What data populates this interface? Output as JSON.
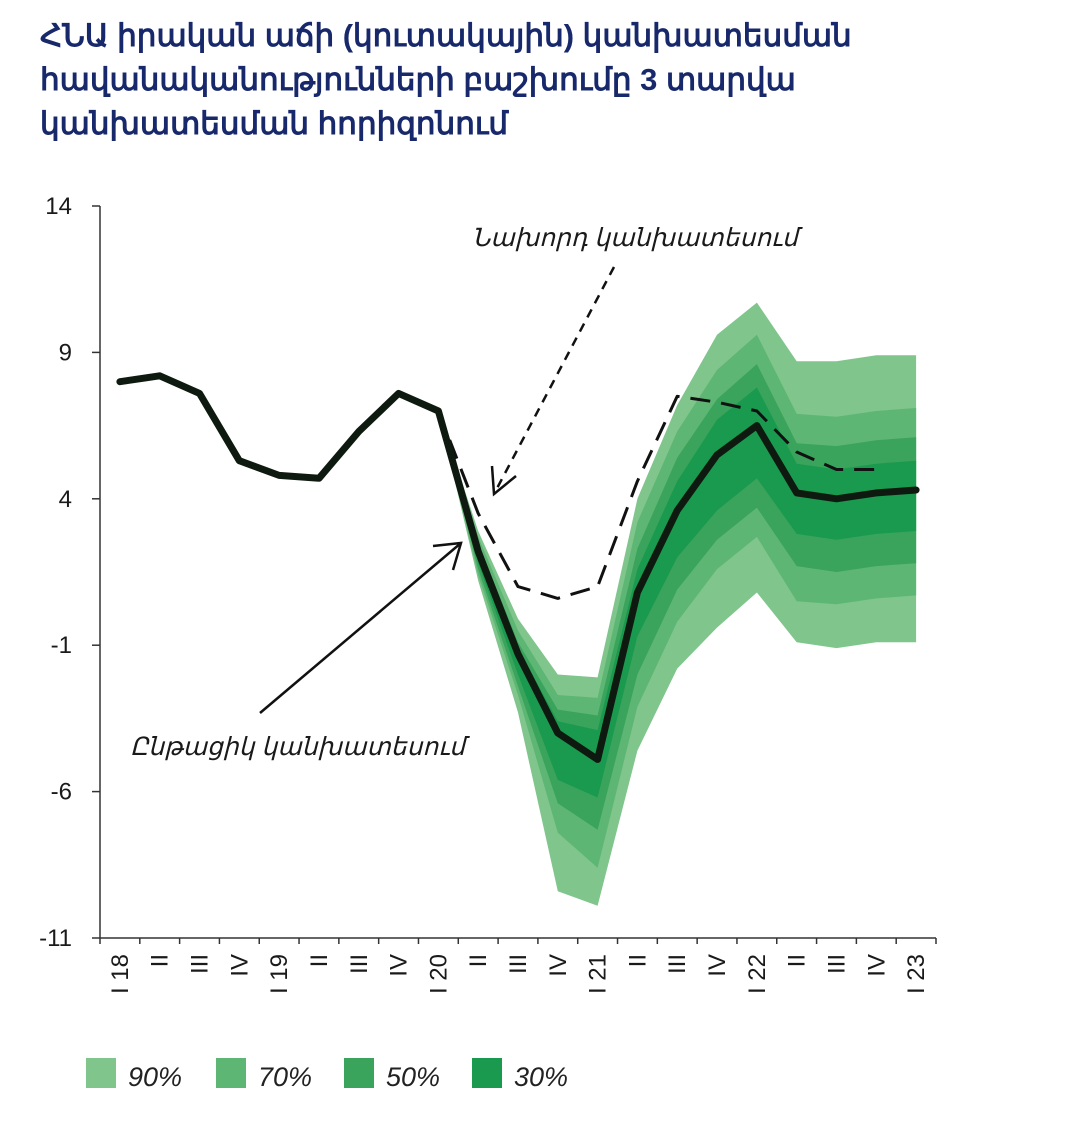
{
  "title_lines": [
    "ՀՆԱ իրական աճի (կուտակային)  կանխատեսման",
    "հավանականությունների բաշխումը 3 տարվա",
    "կանխատեսման հորիզոնում"
  ],
  "colors": {
    "fan_90": "#7fc58c",
    "fan_70": "#5db673",
    "fan_50": "#3aa35c",
    "fan_30": "#1a9a4e",
    "base_line": "#0e1a10",
    "prev_line": "#111111",
    "axis": "#333333"
  },
  "chart_data": {
    "type": "line",
    "ylim": [
      -11,
      14
    ],
    "yticks": [
      14,
      9,
      4,
      -1,
      -6,
      -11
    ],
    "x_categories": [
      "I 18",
      "II",
      "III",
      "IV",
      "I 19",
      "II",
      "III",
      "IV",
      "I 20",
      "II",
      "III",
      "IV",
      "I 21",
      "II",
      "III",
      "IV",
      "I 22",
      "II",
      "III",
      "IV",
      "I 23"
    ],
    "baseline_forecast": {
      "name": "Ընթացիկ կանխատեսում",
      "x": [
        0.5,
        1.5,
        2.5,
        3.5,
        4.5,
        5.5,
        6.5,
        7.5,
        8.5,
        9.5,
        10.5,
        11.5,
        12.5,
        13.5,
        14.5,
        15.5,
        16.5,
        17.5,
        18.5,
        19.5,
        20.5
      ],
      "values": [
        8.0,
        8.2,
        7.6,
        5.3,
        4.8,
        4.7,
        6.3,
        7.6,
        7.0,
        2.2,
        -1.3,
        -4.0,
        -4.9,
        0.8,
        3.6,
        5.5,
        6.5,
        4.2,
        4.0,
        4.2,
        4.3
      ]
    },
    "previous_forecast": {
      "name": "Նախորդ կանխատեսում",
      "x": [
        8.5,
        9.5,
        10.5,
        11.5,
        12.5,
        13.5,
        14.5,
        15.5,
        16.5,
        17.5,
        18.5,
        19.5
      ],
      "values": [
        7.0,
        3.5,
        1.0,
        0.6,
        1.0,
        4.6,
        7.5,
        7.3,
        7.0,
        5.6,
        5.0,
        5.0
      ]
    },
    "fan": {
      "x": [
        8.5,
        9.5,
        10.5,
        11.5,
        12.5,
        13.5,
        14.5,
        15.5,
        16.5,
        17.5,
        18.5,
        19.5,
        20.5
      ],
      "bands": [
        {
          "name": "90%",
          "upper": [
            7.0,
            2.9,
            -0.1,
            -2.0,
            -2.1,
            4.0,
            7.2,
            9.6,
            10.7,
            8.7,
            8.7,
            8.9,
            8.9
          ],
          "lower": [
            7.0,
            1.2,
            -3.3,
            -9.4,
            -9.9,
            -4.6,
            -1.8,
            -0.4,
            0.8,
            -0.9,
            -1.1,
            -0.9,
            -0.9
          ]
        },
        {
          "name": "70%",
          "upper": [
            7.0,
            2.7,
            -0.5,
            -2.7,
            -2.8,
            3.2,
            6.3,
            8.4,
            9.6,
            6.9,
            6.8,
            7.0,
            7.1
          ],
          "lower": [
            7.0,
            1.4,
            -2.7,
            -7.4,
            -8.6,
            -3.1,
            -0.2,
            1.6,
            2.7,
            0.5,
            0.4,
            0.6,
            0.7
          ]
        },
        {
          "name": "50%",
          "upper": [
            7.0,
            2.5,
            -0.9,
            -3.2,
            -3.4,
            2.3,
            5.4,
            7.4,
            8.6,
            5.9,
            5.8,
            6.0,
            6.1
          ],
          "lower": [
            7.0,
            1.6,
            -2.4,
            -6.4,
            -7.3,
            -2.0,
            0.9,
            2.6,
            3.7,
            1.7,
            1.5,
            1.7,
            1.8
          ]
        },
        {
          "name": "30%",
          "upper": [
            7.0,
            2.4,
            -1.1,
            -3.6,
            -3.9,
            1.6,
            4.6,
            6.7,
            7.8,
            5.2,
            5.0,
            5.2,
            5.3
          ],
          "lower": [
            7.0,
            1.8,
            -2.0,
            -5.6,
            -6.2,
            -0.7,
            2.0,
            3.6,
            4.7,
            2.8,
            2.6,
            2.8,
            2.9
          ]
        }
      ]
    },
    "annotations": {
      "previous": "Նախորդ կանխատեսում",
      "current": "Ընթացիկ կանխատեսում"
    },
    "legend": [
      "90%",
      "70%",
      "50%",
      "30%"
    ]
  }
}
